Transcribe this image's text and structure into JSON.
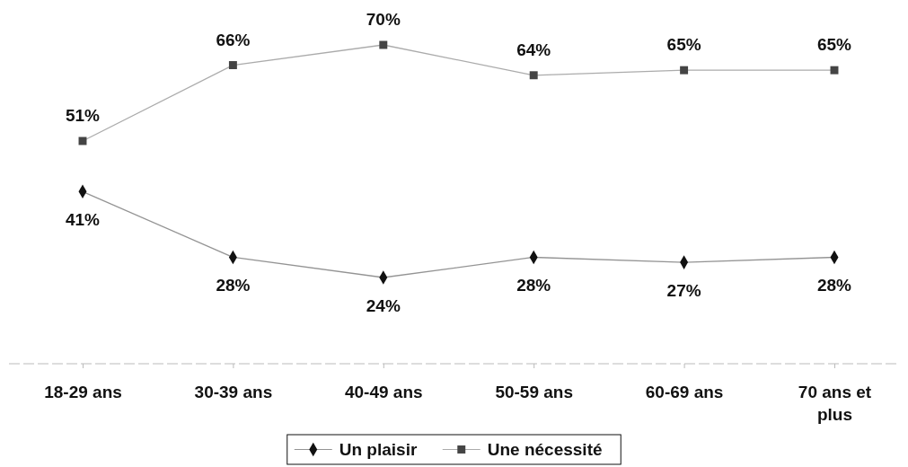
{
  "chart_data": {
    "type": "line",
    "categories": [
      "18-29 ans",
      "30-39 ans",
      "40-49 ans",
      "50-59 ans",
      "60-69 ans",
      "70 ans et plus"
    ],
    "series": [
      {
        "name": "Un plaisir",
        "color": "#111111",
        "marker": "diamond",
        "values": [
          41,
          28,
          24,
          28,
          27,
          28
        ],
        "value_labels": [
          "41%",
          "28%",
          "24%",
          "28%",
          "27%",
          "28%"
        ]
      },
      {
        "name": "Une nécessité",
        "color": "#444444",
        "marker": "square",
        "values": [
          51,
          66,
          70,
          64,
          65,
          65
        ],
        "value_labels": [
          "51%",
          "66%",
          "70%",
          "64%",
          "65%",
          "65%"
        ]
      }
    ],
    "legend": "bottom"
  }
}
